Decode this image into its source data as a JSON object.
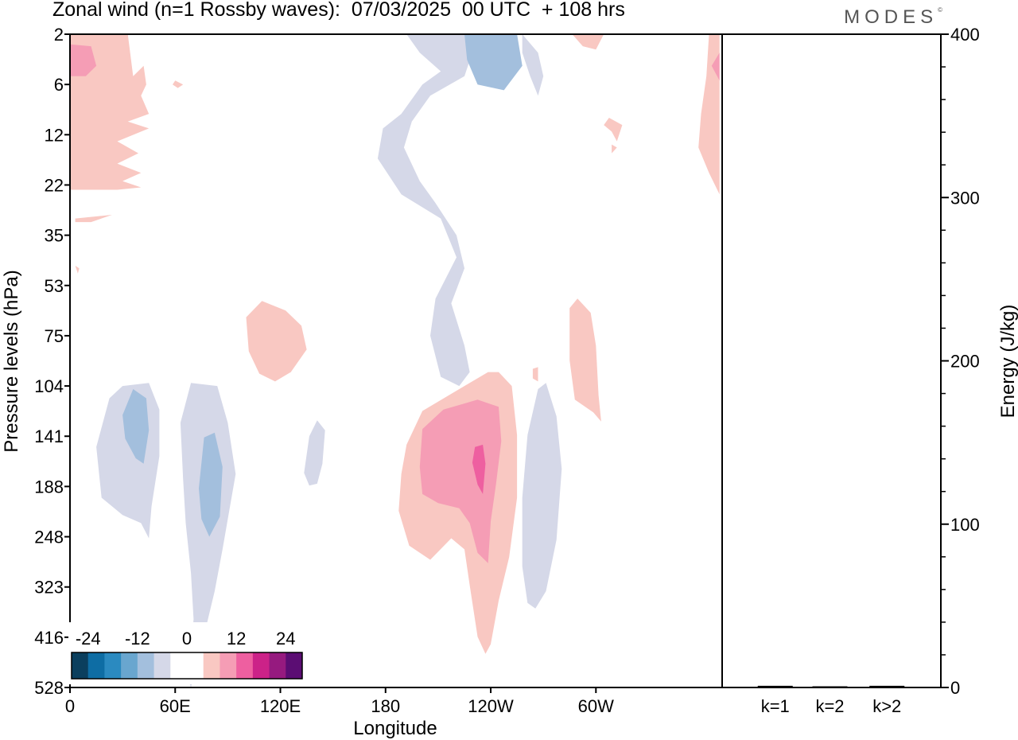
{
  "title": "Zonal wind (n=1 Rossby waves):  07/03/2025  00 UTC  + 108 hrs",
  "brand": "MODES",
  "brand_mark": "©",
  "chart_data": [
    {
      "type": "heatmap",
      "title": "Zonal wind (n=1 Rossby waves):  07/03/2025  00 UTC  + 108 hrs",
      "xlabel": "Longitude",
      "ylabel": "Pressure levels (hPa)",
      "x_ticks": [
        "0",
        "60E",
        "120E",
        "180",
        "120W",
        "60W"
      ],
      "y_ticks": [
        "2",
        "6",
        "12",
        "22",
        "35",
        "53",
        "75",
        "104",
        "141",
        "188",
        "248",
        "323",
        "416",
        "528"
      ],
      "colorbar": {
        "labels": [
          "-24",
          "-12",
          "0",
          "12",
          "24"
        ],
        "colors": [
          "#0b3f5e",
          "#0e6da4",
          "#2b8ac0",
          "#69a6cf",
          "#a3bfdd",
          "#d5d8e8",
          "#ffffff",
          "#ffffff",
          "#f9c8c2",
          "#f59db5",
          "#ee5fa0",
          "#cc2288",
          "#961a7f",
          "#5b0d73"
        ]
      },
      "regions": [
        {
          "name": "pos-0-1",
          "level": 1,
          "points": [
            [
              0,
              2
            ],
            [
              22,
              2
            ],
            [
              24,
              5
            ],
            [
              28,
              4
            ],
            [
              29,
              6
            ],
            [
              27,
              7
            ],
            [
              30,
              9
            ],
            [
              22,
              10
            ],
            [
              30,
              11
            ],
            [
              18,
              13
            ],
            [
              26,
              15
            ],
            [
              18,
              17
            ],
            [
              27,
              19
            ],
            [
              20,
              21
            ],
            [
              27,
              22.5
            ],
            [
              18,
              23
            ],
            [
              0,
              23
            ]
          ]
        },
        {
          "name": "pos-0-2",
          "level": 2,
          "points": [
            [
              0,
              2.5
            ],
            [
              8,
              2.6
            ],
            [
              10,
              4
            ],
            [
              6,
              5
            ],
            [
              0,
              5
            ]
          ]
        },
        {
          "name": "pos-0-3",
          "level": 1,
          "points": [
            [
              2,
              30
            ],
            [
              16,
              29
            ],
            [
              8,
              31
            ],
            [
              2,
              31
            ]
          ]
        },
        {
          "name": "pos-0-4",
          "level": 1,
          "points": [
            [
              2,
              45
            ],
            [
              3,
              48
            ],
            [
              3.5,
              46
            ]
          ]
        },
        {
          "name": "pos-0-5",
          "level": 1,
          "points": [
            [
              40,
              5.5
            ],
            [
              43,
              6
            ],
            [
              41,
              6.3
            ],
            [
              39,
              6
            ]
          ]
        },
        {
          "name": "neg-1",
          "level": -1,
          "points": [
            [
              128,
              2
            ],
            [
              150,
              2
            ],
            [
              153,
              3
            ],
            [
              150,
              5
            ],
            [
              137,
              7
            ],
            [
              130,
              10
            ],
            [
              127,
              14
            ],
            [
              133,
              21
            ],
            [
              139,
              26
            ],
            [
              147,
              35
            ],
            [
              150,
              46
            ],
            [
              145,
              60
            ],
            [
              150,
              80
            ],
            [
              152,
              95
            ],
            [
              148,
              104
            ],
            [
              141,
              98
            ],
            [
              137,
              75
            ],
            [
              139,
              58
            ],
            [
              147,
              42
            ],
            [
              141,
              30
            ],
            [
              126,
              24
            ],
            [
              117,
              16
            ],
            [
              119,
              11
            ],
            [
              126,
              9
            ],
            [
              134,
              6
            ],
            [
              141,
              4.5
            ],
            [
              133,
              3
            ]
          ]
        },
        {
          "name": "neg-2",
          "level": -2,
          "points": [
            [
              150,
              2
            ],
            [
              170,
              2
            ],
            [
              172,
              4
            ],
            [
              165,
              6.5
            ],
            [
              155,
              6
            ],
            [
              151,
              3.5
            ]
          ]
        },
        {
          "name": "neg-3",
          "level": -1,
          "points": [
            [
              172,
              2
            ],
            [
              178,
              3
            ],
            [
              180,
              5
            ],
            [
              178,
              7
            ],
            [
              175,
              5
            ],
            [
              172,
              3
            ]
          ]
        },
        {
          "name": "pos-1",
          "level": 1,
          "points": [
            [
              191,
              2
            ],
            [
              203,
              2
            ],
            [
              200,
              2.8
            ],
            [
              195,
              2.6
            ]
          ]
        },
        {
          "name": "pos-2",
          "level": 1,
          "points": [
            [
              205,
              9.5
            ],
            [
              210,
              10.5
            ],
            [
              208,
              13
            ],
            [
              206,
              11.5
            ],
            [
              203,
              10.5
            ]
          ]
        },
        {
          "name": "pos-3",
          "level": 1,
          "points": [
            [
              206,
              13.5
            ],
            [
              208,
              14
            ],
            [
              206,
              15
            ]
          ]
        },
        {
          "name": "pos-4",
          "level": 1,
          "points": [
            [
              243,
              2
            ],
            [
              247,
              2
            ],
            [
              247,
              24
            ],
            [
              243,
              19
            ],
            [
              239,
              14
            ],
            [
              240,
              9
            ],
            [
              242,
              5
            ]
          ]
        },
        {
          "name": "pos-5",
          "level": 2,
          "points": [
            [
              247,
              3
            ],
            [
              244,
              4
            ],
            [
              247,
              5.5
            ]
          ]
        },
        {
          "name": "neg-4",
          "level": -1,
          "points": [
            [
              10,
              150
            ],
            [
              15,
              112
            ],
            [
              20,
              104
            ],
            [
              30,
              102
            ],
            [
              34,
              120
            ],
            [
              34,
              158
            ],
            [
              31,
              210
            ],
            [
              30,
              250
            ],
            [
              27,
              230
            ],
            [
              20,
              220
            ],
            [
              12,
              200
            ]
          ]
        },
        {
          "name": "neg-5",
          "level": -2,
          "points": [
            [
              20,
              124
            ],
            [
              24,
              106
            ],
            [
              29,
              112
            ],
            [
              30,
              136
            ],
            [
              28,
              165
            ],
            [
              25,
              160
            ],
            [
              21,
              143
            ]
          ]
        },
        {
          "name": "neg-6",
          "level": -1,
          "points": [
            [
              42,
              130
            ],
            [
              46,
              102
            ],
            [
              56,
              104
            ],
            [
              60,
              130
            ],
            [
              63,
              175
            ],
            [
              58,
              265
            ],
            [
              55,
              330
            ],
            [
              52,
              390
            ],
            [
              48,
              480
            ],
            [
              46,
              528
            ],
            [
              45,
              510
            ],
            [
              46,
              440
            ],
            [
              47,
              380
            ],
            [
              46,
              300
            ],
            [
              44,
              230
            ],
            [
              43,
              180
            ]
          ]
        },
        {
          "name": "neg-7",
          "level": -2,
          "points": [
            [
              49,
              190
            ],
            [
              51,
              142
            ],
            [
              55,
              138
            ],
            [
              58,
              168
            ],
            [
              57,
              222
            ],
            [
              53,
              248
            ],
            [
              50,
              225
            ]
          ]
        },
        {
          "name": "neg-8",
          "level": -1,
          "points": [
            [
              89,
              174
            ],
            [
              91,
              141
            ],
            [
              94,
              128
            ],
            [
              97,
              136
            ],
            [
              96,
              165
            ],
            [
              94,
              185
            ],
            [
              91,
              187
            ]
          ]
        },
        {
          "name": "pos-6",
          "level": 1,
          "points": [
            [
              67,
              66
            ],
            [
              73,
              59
            ],
            [
              82,
              63
            ],
            [
              88,
              70
            ],
            [
              90,
              82
            ],
            [
              84,
              95
            ],
            [
              78,
              101
            ],
            [
              72,
              96
            ],
            [
              68,
              83
            ]
          ]
        },
        {
          "name": "pos-7",
          "level": 1,
          "points": [
            [
              126,
              175
            ],
            [
              128,
              148
            ],
            [
              134,
              121
            ],
            [
              148,
              106
            ],
            [
              159,
              95
            ],
            [
              163,
              95
            ],
            [
              168,
              104
            ],
            [
              170,
              140
            ],
            [
              170,
              200
            ],
            [
              167,
              276
            ],
            [
              163,
              346
            ],
            [
              160,
              430
            ],
            [
              158,
              450
            ],
            [
              155,
              415
            ],
            [
              152,
              320
            ],
            [
              150,
              265
            ],
            [
              145,
              250
            ],
            [
              137,
              280
            ],
            [
              129,
              260
            ],
            [
              125,
              215
            ]
          ]
        },
        {
          "name": "pos-8",
          "level": 2,
          "points": [
            [
              133,
              168
            ],
            [
              134,
              135
            ],
            [
              142,
              120
            ],
            [
              155,
              113
            ],
            [
              163,
              118
            ],
            [
              164,
              145
            ],
            [
              162,
              186
            ],
            [
              160,
              228
            ],
            [
              159,
              285
            ],
            [
              155,
              270
            ],
            [
              152,
              230
            ],
            [
              148,
              212
            ],
            [
              140,
              206
            ],
            [
              134,
              196
            ]
          ]
        },
        {
          "name": "pos-9",
          "level": 3,
          "points": [
            [
              153,
              164
            ],
            [
              154,
              150
            ],
            [
              157,
              148
            ],
            [
              158,
              165
            ],
            [
              157,
              196
            ],
            [
              155,
              186
            ]
          ]
        },
        {
          "name": "pos-10",
          "level": 1,
          "points": [
            [
              190,
              62
            ],
            [
              193,
              58
            ],
            [
              198,
              64
            ],
            [
              200,
              80
            ],
            [
              201,
              110
            ],
            [
              202,
              129
            ],
            [
              199,
              122
            ],
            [
              192,
              113
            ],
            [
              190,
              88
            ]
          ]
        },
        {
          "name": "pos-11",
          "level": 1,
          "points": [
            [
              176,
              93
            ],
            [
              178,
              92
            ],
            [
              178,
              101
            ],
            [
              176,
              99
            ]
          ]
        },
        {
          "name": "neg-9",
          "level": -1,
          "points": [
            [
              172,
              200
            ],
            [
              174,
              140
            ],
            [
              178,
              106
            ],
            [
              181,
              102
            ],
            [
              185,
              125
            ],
            [
              187,
              170
            ],
            [
              185,
              252
            ],
            [
              181,
              330
            ],
            [
              177,
              360
            ],
            [
              174,
              350
            ],
            [
              172,
              290
            ]
          ]
        }
      ]
    },
    {
      "type": "bar",
      "categories": [
        "k=1",
        "k=2",
        "k>2"
      ],
      "values": [
        0.3,
        0,
        0.3
      ],
      "ylabel": "Energy (J/kg)",
      "ylim": [
        0,
        400
      ],
      "y_ticks": [
        "0",
        "100",
        "200",
        "300",
        "400"
      ]
    }
  ]
}
